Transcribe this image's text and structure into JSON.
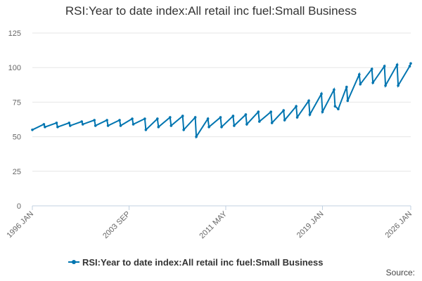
{
  "chart_data": {
    "type": "line",
    "title": "RSI:Year to date index:All retail inc fuel:Small Business",
    "xlabel": "",
    "ylabel": "",
    "x_tick_labels": [
      "1996 JAN",
      "2003 SEP",
      "2011 MAY",
      "2019 JAN",
      "2026 JAN"
    ],
    "y_ticks": [
      0,
      25,
      50,
      75,
      100,
      125
    ],
    "ylim": [
      0,
      125
    ],
    "xlim": [
      "1996 JAN",
      "2026 JAN"
    ],
    "grid": true,
    "legend_position": "bottom",
    "series": [
      {
        "name": "RSI:Year to date index:All retail inc fuel:Small Business",
        "color": "#0075b0",
        "marker": "circle",
        "x": [
          "1996 JAN",
          "1996 DEC",
          "1997 JAN",
          "1997 DEC",
          "1998 JAN",
          "1998 DEC",
          "1999 JAN",
          "1999 DEC",
          "2000 JAN",
          "2000 DEC",
          "2001 JAN",
          "2001 DEC",
          "2002 JAN",
          "2002 DEC",
          "2003 JAN",
          "2003 DEC",
          "2004 JAN",
          "2004 DEC",
          "2005 JAN",
          "2005 DEC",
          "2006 JAN",
          "2006 DEC",
          "2007 JAN",
          "2007 DEC",
          "2008 JAN",
          "2008 DEC",
          "2009 JAN",
          "2009 DEC",
          "2010 JAN",
          "2010 DEC",
          "2011 JAN",
          "2011 DEC",
          "2012 JAN",
          "2012 DEC",
          "2013 JAN",
          "2013 DEC",
          "2014 JAN",
          "2014 DEC",
          "2015 JAN",
          "2015 DEC",
          "2016 JAN",
          "2016 DEC",
          "2017 JAN",
          "2017 DEC",
          "2018 JAN",
          "2018 DEC",
          "2019 JAN",
          "2019 DEC",
          "2020 JAN",
          "2020 APR",
          "2020 DEC",
          "2021 JAN",
          "2021 DEC",
          "2022 JAN",
          "2022 DEC",
          "2023 JAN",
          "2023 DEC",
          "2024 JAN",
          "2024 DEC",
          "2025 JAN",
          "2025 DEC",
          "2026 JAN"
        ],
        "values": [
          55,
          59,
          57,
          60,
          57,
          60,
          58,
          61,
          59,
          62,
          58,
          62,
          58,
          62,
          58,
          63,
          59,
          63,
          55,
          63,
          57,
          64,
          58,
          65,
          55,
          64,
          50,
          63,
          57,
          64,
          57,
          65,
          58,
          66,
          59,
          68,
          61,
          68,
          60,
          69,
          62,
          72,
          64,
          76,
          66,
          81,
          68,
          84,
          72,
          70,
          86,
          76,
          95,
          88,
          99,
          89,
          101,
          87,
          102,
          87,
          101,
          103
        ]
      }
    ]
  },
  "legend": {
    "label": "RSI:Year to date index:All retail inc fuel:Small Business"
  },
  "source": {
    "label": "Source:"
  }
}
